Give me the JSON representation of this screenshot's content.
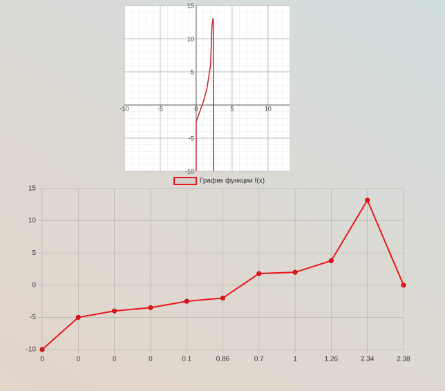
{
  "chart_data": [
    {
      "type": "line",
      "x": [
        0,
        0,
        0.5,
        1,
        1.5,
        2,
        2.2,
        2.34,
        2.38,
        2.4
      ],
      "series": [
        {
          "color": "#c8202a",
          "values": [
            -10,
            -2.5,
            -1,
            0.5,
            2.5,
            6,
            12,
            13,
            13,
            -10
          ]
        }
      ],
      "xlim": [
        -10,
        13
      ],
      "ylim": [
        -10,
        15
      ],
      "xticks": [
        -10,
        -5,
        0,
        5,
        10
      ],
      "yticks": [
        -10,
        -5,
        5,
        10,
        15
      ],
      "grid": true
    },
    {
      "type": "line",
      "categories": [
        "0",
        "0",
        "0",
        "0",
        "0.1",
        "0.86",
        "0.7",
        "1",
        "1.26",
        "2.34",
        "2.38"
      ],
      "series": [
        {
          "name": "График функции f(x)",
          "color": "#e8161b",
          "values": [
            -10,
            -5,
            -4,
            -3.5,
            -2.5,
            -2,
            1.8,
            2,
            3.8,
            13.2,
            0
          ]
        }
      ],
      "ylim": [
        -10,
        15
      ],
      "yticks": [
        -10,
        -5,
        0,
        5,
        10,
        15
      ],
      "grid": true,
      "legend": "top"
    }
  ]
}
